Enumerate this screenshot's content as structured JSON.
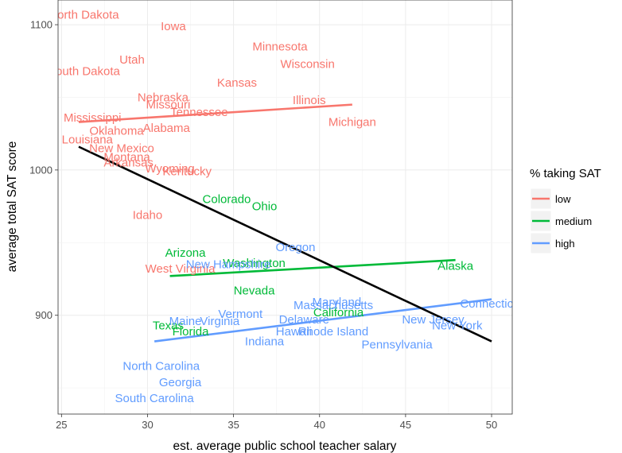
{
  "chart_data": {
    "type": "scatter",
    "title": "",
    "xlabel": "est. average public school teacher salary",
    "ylabel": "average total SAT score",
    "xlim": [
      24.8,
      51.2
    ],
    "ylim": [
      832,
      1117
    ],
    "x_ticks": [
      25,
      30,
      35,
      40,
      45,
      50
    ],
    "y_ticks": [
      900,
      1000,
      1100
    ],
    "grid": true,
    "legend": {
      "title": "% taking SAT",
      "position": "right",
      "entries": [
        {
          "key": "low",
          "label": "low",
          "color": "#F8766D"
        },
        {
          "key": "medium",
          "label": "medium",
          "color": "#00BA38"
        },
        {
          "key": "high",
          "label": "high",
          "color": "#619CFF"
        }
      ]
    },
    "points": [
      {
        "label": "North Dakota",
        "x": 26.3,
        "y": 1107,
        "group": "low"
      },
      {
        "label": "Iowa",
        "x": 31.5,
        "y": 1099,
        "group": "low"
      },
      {
        "label": "Minnesota",
        "x": 37.7,
        "y": 1085,
        "group": "low"
      },
      {
        "label": "Utah",
        "x": 29.1,
        "y": 1076,
        "group": "low"
      },
      {
        "label": "Wisconsin",
        "x": 39.3,
        "y": 1073,
        "group": "low"
      },
      {
        "label": "South Dakota",
        "x": 26.3,
        "y": 1068,
        "group": "low"
      },
      {
        "label": "Kansas",
        "x": 35.2,
        "y": 1060,
        "group": "low"
      },
      {
        "label": "Illinois",
        "x": 39.4,
        "y": 1048,
        "group": "low"
      },
      {
        "label": "Nebraska",
        "x": 30.9,
        "y": 1050,
        "group": "low"
      },
      {
        "label": "Missouri",
        "x": 31.2,
        "y": 1045,
        "group": "low"
      },
      {
        "label": "Tennessee",
        "x": 33.0,
        "y": 1040,
        "group": "low"
      },
      {
        "label": "Mississippi",
        "x": 26.8,
        "y": 1036,
        "group": "low"
      },
      {
        "label": "Michigan",
        "x": 41.9,
        "y": 1033,
        "group": "low"
      },
      {
        "label": "Alabama",
        "x": 31.1,
        "y": 1029,
        "group": "low"
      },
      {
        "label": "Oklahoma",
        "x": 28.2,
        "y": 1027,
        "group": "low"
      },
      {
        "label": "Louisiana",
        "x": 26.5,
        "y": 1021,
        "group": "low"
      },
      {
        "label": "New Mexico",
        "x": 28.5,
        "y": 1015,
        "group": "low"
      },
      {
        "label": "Montana",
        "x": 28.8,
        "y": 1009,
        "group": "low"
      },
      {
        "label": "Arkansas",
        "x": 28.9,
        "y": 1005,
        "group": "low"
      },
      {
        "label": "Wyoming",
        "x": 31.3,
        "y": 1001,
        "group": "low"
      },
      {
        "label": "Kentucky",
        "x": 32.3,
        "y": 999,
        "group": "low"
      },
      {
        "label": "Idaho",
        "x": 30.0,
        "y": 969,
        "group": "low"
      },
      {
        "label": "West Virginia",
        "x": 31.9,
        "y": 932,
        "group": "low"
      },
      {
        "label": "Colorado",
        "x": 34.6,
        "y": 980,
        "group": "medium"
      },
      {
        "label": "Ohio",
        "x": 36.8,
        "y": 975,
        "group": "medium"
      },
      {
        "label": "Arizona",
        "x": 32.2,
        "y": 943,
        "group": "medium"
      },
      {
        "label": "Washington",
        "x": 36.2,
        "y": 936,
        "group": "medium"
      },
      {
        "label": "Alaska",
        "x": 47.9,
        "y": 934,
        "group": "medium"
      },
      {
        "label": "Nevada",
        "x": 36.2,
        "y": 917,
        "group": "medium"
      },
      {
        "label": "California",
        "x": 41.1,
        "y": 902,
        "group": "medium"
      },
      {
        "label": "Texas",
        "x": 31.2,
        "y": 893,
        "group": "medium"
      },
      {
        "label": "Florida",
        "x": 32.5,
        "y": 889,
        "group": "medium"
      },
      {
        "label": "Oregon",
        "x": 38.6,
        "y": 947,
        "group": "high"
      },
      {
        "label": "New Hampshire",
        "x": 34.7,
        "y": 935,
        "group": "high"
      },
      {
        "label": "Maryland",
        "x": 41.0,
        "y": 909,
        "group": "high"
      },
      {
        "label": "Massachusetts",
        "x": 40.8,
        "y": 907,
        "group": "high"
      },
      {
        "label": "Connecticut",
        "x": 50.0,
        "y": 908,
        "group": "high"
      },
      {
        "label": "Vermont",
        "x": 35.4,
        "y": 901,
        "group": "high"
      },
      {
        "label": "Delaware",
        "x": 39.1,
        "y": 897,
        "group": "high"
      },
      {
        "label": "New Jersey",
        "x": 46.6,
        "y": 897,
        "group": "high"
      },
      {
        "label": "Maine",
        "x": 32.2,
        "y": 896,
        "group": "high"
      },
      {
        "label": "Virginia",
        "x": 34.2,
        "y": 896,
        "group": "high"
      },
      {
        "label": "New York",
        "x": 48.0,
        "y": 893,
        "group": "high"
      },
      {
        "label": "Hawaii",
        "x": 38.5,
        "y": 889,
        "group": "high"
      },
      {
        "label": "Rhode Island",
        "x": 40.8,
        "y": 889,
        "group": "high"
      },
      {
        "label": "Indiana",
        "x": 36.8,
        "y": 882,
        "group": "high"
      },
      {
        "label": "Pennsylvania",
        "x": 44.5,
        "y": 880,
        "group": "high"
      },
      {
        "label": "North Carolina",
        "x": 30.8,
        "y": 865,
        "group": "high"
      },
      {
        "label": "Georgia",
        "x": 31.9,
        "y": 854,
        "group": "high"
      },
      {
        "label": "South Carolina",
        "x": 30.4,
        "y": 843,
        "group": "high"
      }
    ],
    "fit_lines": [
      {
        "group": "low",
        "color": "#F8766D",
        "x": [
          26.0,
          41.9
        ],
        "y": [
          1033,
          1045
        ]
      },
      {
        "group": "medium",
        "color": "#00BA38",
        "x": [
          31.3,
          47.9
        ],
        "y": [
          927,
          938
        ]
      },
      {
        "group": "high",
        "color": "#619CFF",
        "x": [
          30.4,
          50.0
        ],
        "y": [
          882,
          911
        ]
      },
      {
        "group": "all",
        "color": "#000000",
        "x": [
          26.0,
          50.0
        ],
        "y": [
          1016,
          882
        ]
      }
    ]
  }
}
